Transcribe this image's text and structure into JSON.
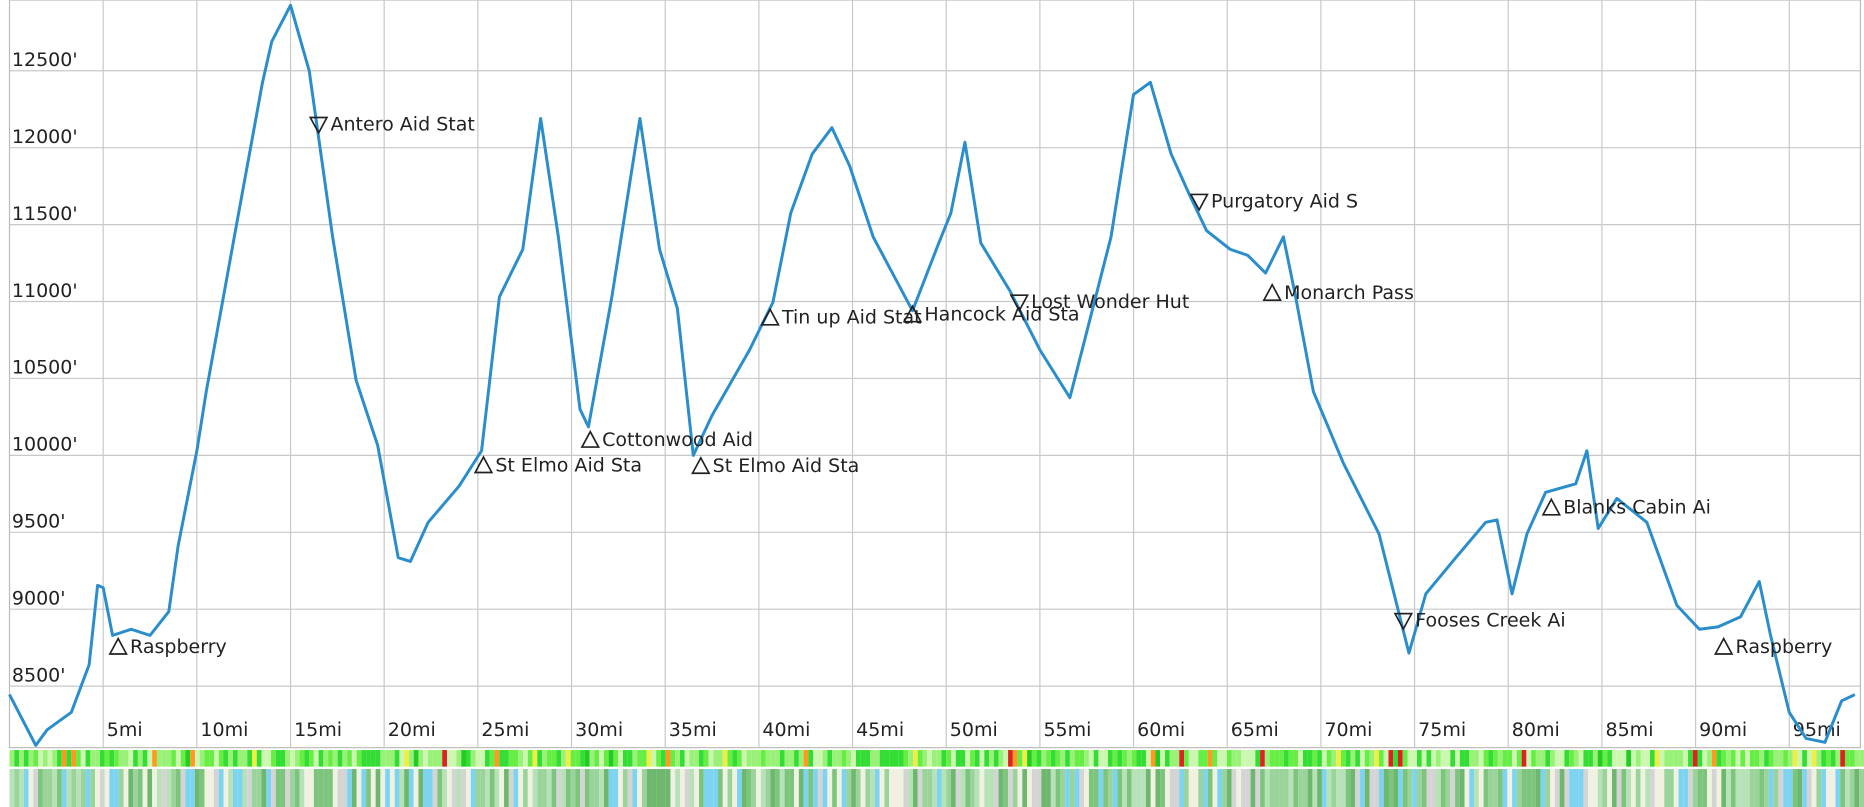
{
  "chart_data": {
    "type": "line",
    "x": [
      0,
      1.4,
      2,
      3.3,
      4.25,
      4.7,
      5,
      5.5,
      6.5,
      7.5,
      8.5,
      9,
      10,
      10.5,
      12,
      13.5,
      14,
      15,
      16,
      17.25,
      18.5,
      19.65,
      20.75,
      21.4,
      22.35,
      24,
      25.2,
      26.15,
      27.4,
      28.35,
      29.3,
      30.45,
      30.9,
      32.15,
      33.65,
      34.7,
      35.65,
      36.5,
      37.5,
      39.5,
      40.75,
      41.7,
      42.85,
      43.9,
      44.85,
      46.1,
      48.2,
      49.6,
      50.25,
      51,
      51.85,
      53.4,
      55,
      56.6,
      57.5,
      58.8,
      60,
      60.9,
      62,
      63,
      63.9,
      65.15,
      66.1,
      67.05,
      68,
      68.65,
      69.6,
      71.2,
      73.1,
      74.7,
      75.6,
      77.2,
      78.8,
      79.4,
      80.2,
      81,
      82,
      83.6,
      84.2,
      84.8,
      85.8,
      87.4,
      89,
      90.2,
      91.2,
      92.4,
      93.4,
      94,
      95,
      95.9,
      96.9,
      97.8,
      98.5
    ],
    "series": [
      {
        "color": "#2a8dcc",
        "values": [
          8445,
          8115,
          8215,
          8330,
          8640,
          9155,
          9140,
          8830,
          8870,
          8830,
          8985,
          9410,
          10030,
          10415,
          11420,
          12420,
          12690,
          12925,
          12500,
          11420,
          10490,
          10065,
          9335,
          9310,
          9565,
          9800,
          10030,
          11030,
          11340,
          12190,
          11420,
          10300,
          10185,
          11030,
          12190,
          11340,
          10955,
          10000,
          10260,
          10685,
          10995,
          11575,
          11960,
          12130,
          11880,
          11420,
          10940,
          11380,
          11575,
          12035,
          11380,
          11070,
          10685,
          10375,
          10800,
          11420,
          12345,
          12425,
          11960,
          11690,
          11460,
          11340,
          11300,
          11185,
          11420,
          11030,
          10415,
          9950,
          9490,
          8715,
          9100,
          9335,
          9565,
          9580,
          9100,
          9490,
          9760,
          9815,
          10030,
          9525,
          9720,
          9565,
          9025,
          8870,
          8885,
          8950,
          9180,
          8830,
          8330,
          8160,
          8135,
          8405,
          8445
        ]
      }
    ],
    "xlim": [
      0,
      98.8
    ],
    "ylim": [
      8100,
      12960
    ],
    "xticks": [
      {
        "value": 5,
        "label": "5mi"
      },
      {
        "value": 10,
        "label": "10mi"
      },
      {
        "value": 15,
        "label": "15mi"
      },
      {
        "value": 20,
        "label": "20mi"
      },
      {
        "value": 25,
        "label": "25mi"
      },
      {
        "value": 30,
        "label": "30mi"
      },
      {
        "value": 35,
        "label": "35mi"
      },
      {
        "value": 40,
        "label": "40mi"
      },
      {
        "value": 45,
        "label": "45mi"
      },
      {
        "value": 50,
        "label": "50mi"
      },
      {
        "value": 55,
        "label": "55mi"
      },
      {
        "value": 60,
        "label": "60mi"
      },
      {
        "value": 65,
        "label": "65mi"
      },
      {
        "value": 70,
        "label": "70mi"
      },
      {
        "value": 75,
        "label": "75mi"
      },
      {
        "value": 80,
        "label": "80mi"
      },
      {
        "value": 85,
        "label": "85mi"
      },
      {
        "value": 90,
        "label": "90mi"
      },
      {
        "value": 95,
        "label": "95mi"
      }
    ],
    "yticks": [
      {
        "value": 8500,
        "label": "8500'"
      },
      {
        "value": 9000,
        "label": "9000'"
      },
      {
        "value": 9500,
        "label": "9500'"
      },
      {
        "value": 10000,
        "label": "10000'"
      },
      {
        "value": 10500,
        "label": "10500'"
      },
      {
        "value": 11000,
        "label": "11000'"
      },
      {
        "value": 11500,
        "label": "11500'"
      },
      {
        "value": 12000,
        "label": "12000'"
      },
      {
        "value": 12500,
        "label": "12500'"
      }
    ],
    "grid": true,
    "waypoints": [
      {
        "label": "Raspberry",
        "x": 5.8,
        "y": 8755,
        "marker": "up"
      },
      {
        "label": "Antero Aid Stat",
        "x": 16.5,
        "y": 12150,
        "marker": "down"
      },
      {
        "label": "St Elmo Aid Sta",
        "x": 25.3,
        "y": 9935,
        "marker": "up"
      },
      {
        "label": "Cottonwood Aid",
        "x": 31.0,
        "y": 10100,
        "marker": "up"
      },
      {
        "label": "St Elmo Aid Sta",
        "x": 36.9,
        "y": 9930,
        "marker": "up"
      },
      {
        "label": "Tin up Aid Stat",
        "x": 40.6,
        "y": 10895,
        "marker": "up"
      },
      {
        "label": "Hancock Aid Sta",
        "x": 48.2,
        "y": 10915,
        "marker": "up"
      },
      {
        "label": "Lost Wonder Hut",
        "x": 53.9,
        "y": 10995,
        "marker": "down"
      },
      {
        "label": "Purgatory Aid S",
        "x": 63.5,
        "y": 11650,
        "marker": "down"
      },
      {
        "label": "Monarch Pass",
        "x": 67.4,
        "y": 11055,
        "marker": "up"
      },
      {
        "label": "Fooses Creek Ai",
        "x": 74.4,
        "y": 8925,
        "marker": "down"
      },
      {
        "label": "Blanks Cabin Ai",
        "x": 82.3,
        "y": 9660,
        "marker": "up"
      },
      {
        "label": "Raspberry",
        "x": 91.5,
        "y": 8755,
        "marker": "up"
      }
    ]
  }
}
